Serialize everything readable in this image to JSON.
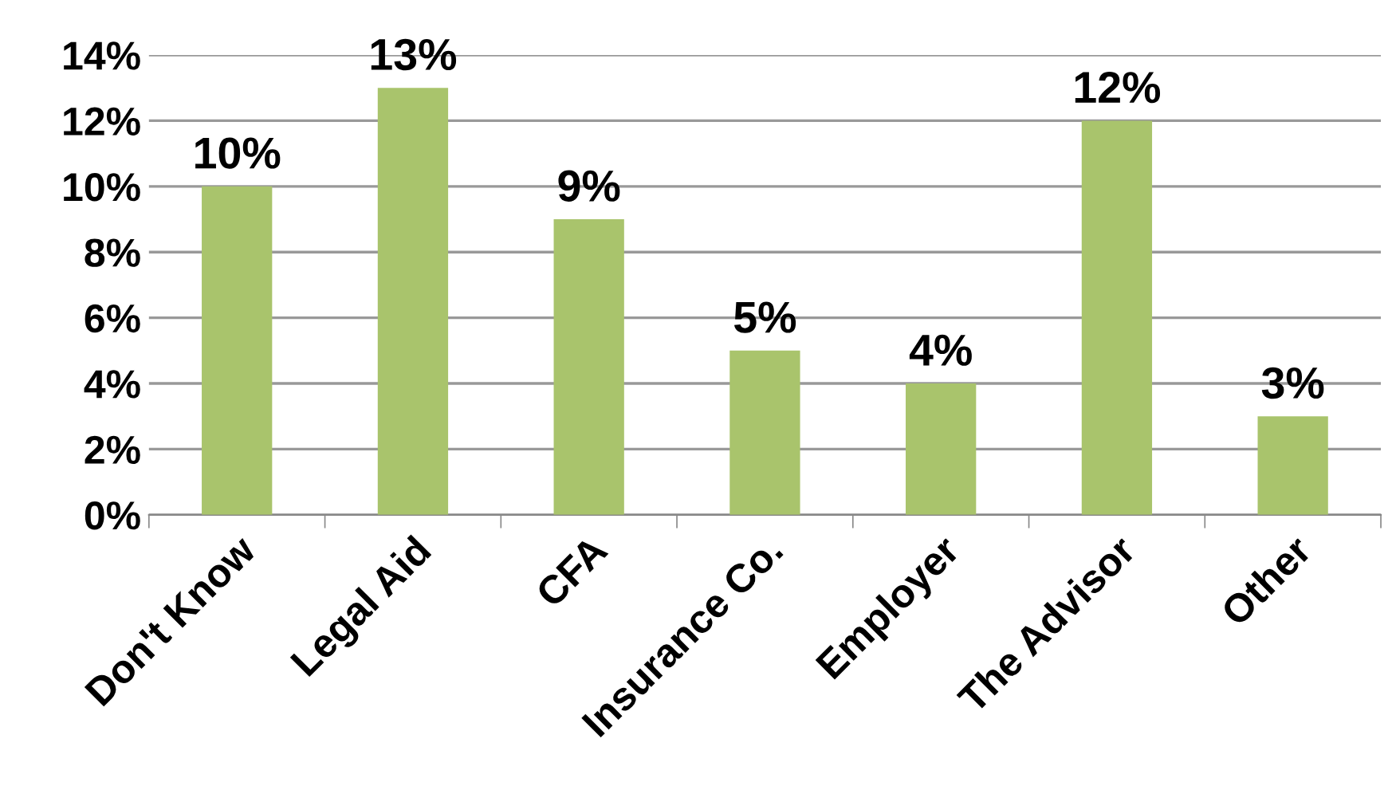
{
  "chart_data": {
    "type": "bar",
    "categories": [
      "Don't Know",
      "Legal Aid",
      "CFA",
      "Insurance Co.",
      "Employer",
      "The Advisor",
      "Other"
    ],
    "values": [
      10,
      13,
      9,
      5,
      4,
      12,
      3
    ],
    "value_labels": [
      "10%",
      "13%",
      "9%",
      "5%",
      "4%",
      "12%",
      "3%"
    ],
    "color": "#a9c46c",
    "ylim": [
      0,
      14
    ],
    "yticks": [
      {
        "value": 0,
        "label": "0%"
      },
      {
        "value": 2,
        "label": "2%"
      },
      {
        "value": 4,
        "label": "4%"
      },
      {
        "value": 6,
        "label": "6%"
      },
      {
        "value": 8,
        "label": "8%"
      },
      {
        "value": 10,
        "label": "10%"
      },
      {
        "value": 12,
        "label": "12%"
      },
      {
        "value": 14,
        "label": "14%"
      }
    ],
    "grid": "y",
    "legend": false
  }
}
